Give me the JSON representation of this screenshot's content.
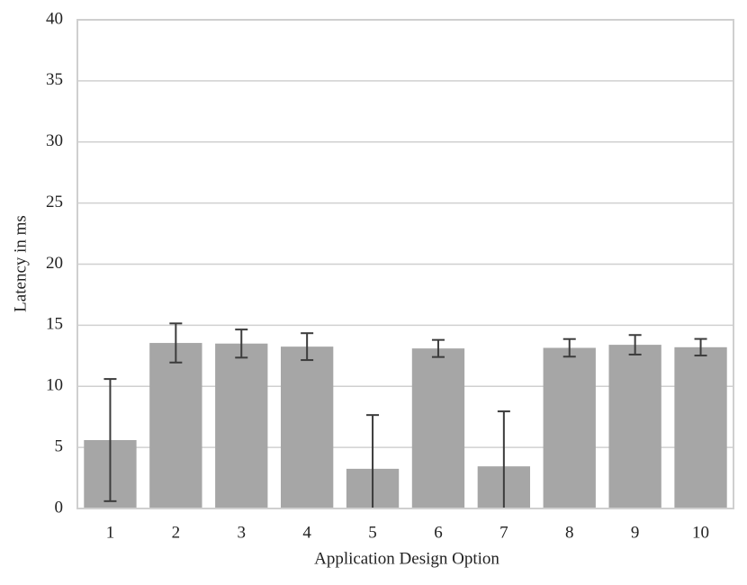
{
  "chart_data": {
    "type": "bar",
    "x_label": "Application Design Option",
    "y_label": "Latency in ms",
    "categories": [
      "1",
      "2",
      "3",
      "4",
      "5",
      "6",
      "7",
      "8",
      "9",
      "10"
    ],
    "values": [
      5.6,
      13.55,
      13.5,
      13.25,
      3.25,
      13.1,
      3.45,
      13.15,
      13.4,
      13.2
    ],
    "errors": [
      5.0,
      1.6,
      1.15,
      1.1,
      4.4,
      0.7,
      4.5,
      0.72,
      0.8,
      0.68
    ],
    "color": "#a6a6a6",
    "error_color": "#3c3c3c",
    "ylim": [
      0,
      40
    ],
    "yticks": [
      0,
      5,
      10,
      15,
      20,
      25,
      30,
      35,
      40
    ],
    "grid": true
  }
}
